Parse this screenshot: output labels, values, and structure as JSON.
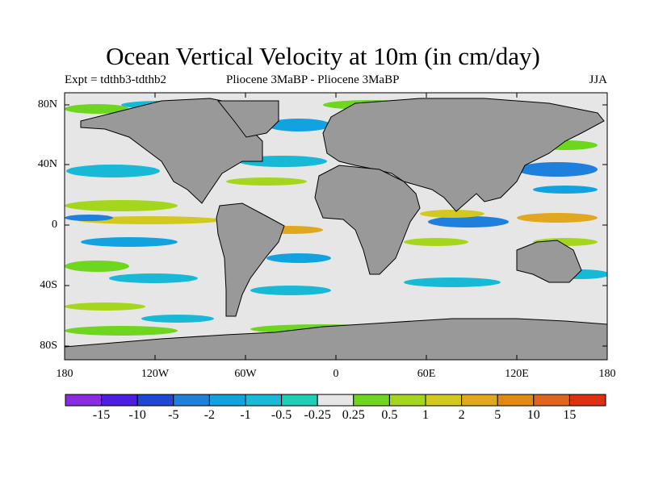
{
  "title": "Ocean Vertical Velocity at 10m (in cm/day)",
  "subtitle_left": "Expt = tdthb3-tdthb2",
  "subtitle_center": "Pliocene   3MaBP - Pliocene   3MaBP",
  "subtitle_right": "JJA",
  "lat_labels": [
    "80N",
    "40N",
    "0",
    "40S",
    "80S"
  ],
  "lon_labels": [
    "180",
    "120W",
    "60W",
    "0",
    "60E",
    "120E",
    "180"
  ],
  "colors": {
    "land": "#999999",
    "neutral": "#e6e6e6",
    "outline": "#000000"
  },
  "colorbar": {
    "labels": [
      "-15",
      "-10",
      "-5",
      "-2",
      "-1",
      "-0.5",
      "-0.25",
      "0.25",
      "0.5",
      "1",
      "2",
      "5",
      "10",
      "15"
    ],
    "colors": [
      "#8a2be2",
      "#4b1ee0",
      "#1f47d6",
      "#1f7fdc",
      "#12a2e0",
      "#17b9d6",
      "#1ecdb4",
      "#e6e6e6",
      "#6ed61e",
      "#a5d61e",
      "#d2c81e",
      "#e0a81e",
      "#e08a12",
      "#e0641e",
      "#dc3212"
    ]
  }
}
